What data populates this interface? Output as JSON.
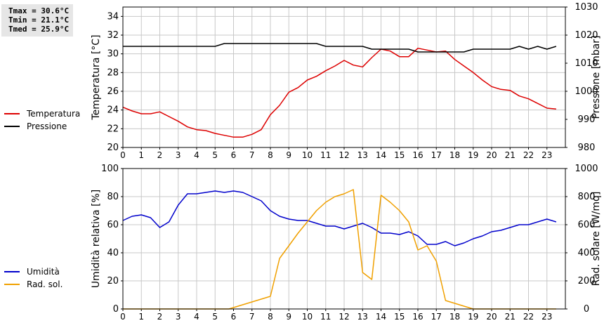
{
  "stats": {
    "tmax": "Tmax = 30.6°C",
    "tmin": "Tmin = 21.1°C",
    "tmed": "Tmed = 25.9°C"
  },
  "colors": {
    "temperature": "#dd0000",
    "pressure": "#000000",
    "humidity": "#0000cc",
    "radiation": "#f0a000",
    "grid": "#c8c8c8"
  },
  "chart_data": [
    {
      "type": "line",
      "x_ticks": [
        "0",
        "1",
        "2",
        "3",
        "4",
        "5",
        "6",
        "7",
        "8",
        "9",
        "10",
        "11",
        "12",
        "13",
        "14",
        "15",
        "16",
        "17",
        "18",
        "19",
        "20",
        "21",
        "22",
        "23"
      ],
      "xlim": [
        0,
        24
      ],
      "ylabel": "Temperatura [°C]",
      "ylim": [
        20,
        35
      ],
      "y_ticks": [
        "20",
        "22",
        "24",
        "26",
        "28",
        "30",
        "32",
        "34"
      ],
      "ylabel_right": "Pressione [mbar]",
      "ylim_right": [
        980,
        1030
      ],
      "y_ticks_right": [
        "980",
        "990",
        "1000",
        "1010",
        "1020",
        "1030"
      ],
      "grid": true,
      "legend_position": "left",
      "series": [
        {
          "name": "Temperatura",
          "axis": "left",
          "x": [
            0,
            0.5,
            1,
            1.5,
            2,
            2.5,
            3,
            3.5,
            4,
            4.5,
            5,
            5.5,
            6,
            6.25,
            6.5,
            7,
            7.5,
            8,
            8.5,
            9,
            9.5,
            10,
            10.5,
            11,
            11.5,
            12,
            12.5,
            13,
            13.5,
            14,
            14.5,
            15,
            15.5,
            16,
            16.5,
            17,
            17.5,
            18,
            18.5,
            19,
            19.5,
            20,
            20.5,
            21,
            21.5,
            22,
            22.5,
            23,
            23.5
          ],
          "values": [
            24.3,
            23.9,
            23.6,
            23.6,
            23.8,
            23.3,
            22.8,
            22.2,
            21.9,
            21.8,
            21.5,
            21.3,
            21.1,
            21.1,
            21.1,
            21.4,
            21.9,
            23.5,
            24.5,
            25.9,
            26.4,
            27.2,
            27.6,
            28.2,
            28.7,
            29.3,
            28.8,
            28.6,
            29.6,
            30.5,
            30.3,
            29.7,
            29.7,
            30.6,
            30.4,
            30.2,
            30.3,
            29.4,
            28.7,
            28.0,
            27.2,
            26.5,
            26.2,
            26.1,
            25.5,
            25.2,
            24.7,
            24.2,
            24.1
          ]
        },
        {
          "name": "Pressione",
          "axis": "right",
          "x": [
            0,
            1,
            2,
            3,
            4,
            5,
            5.5,
            6,
            7,
            8,
            9,
            10,
            10.5,
            11,
            12,
            13,
            13.5,
            14,
            15,
            15.5,
            16,
            17,
            18,
            18.5,
            19,
            20,
            21,
            21.5,
            22,
            22.5,
            23,
            23.5
          ],
          "values": [
            1016,
            1016,
            1016,
            1016,
            1016,
            1016,
            1017,
            1017,
            1017,
            1017,
            1017,
            1017,
            1017,
            1016,
            1016,
            1016,
            1015,
            1015,
            1015,
            1015,
            1014,
            1014,
            1014,
            1014,
            1015,
            1015,
            1015,
            1016,
            1015,
            1016,
            1015,
            1016
          ]
        }
      ]
    },
    {
      "type": "line",
      "x_ticks": [
        "0",
        "1",
        "2",
        "3",
        "4",
        "5",
        "6",
        "7",
        "8",
        "9",
        "10",
        "11",
        "12",
        "13",
        "14",
        "15",
        "16",
        "17",
        "18",
        "19",
        "20",
        "21",
        "22",
        "23"
      ],
      "xlim": [
        0,
        24
      ],
      "ylabel": "Umidità relativa [%]",
      "ylim": [
        0,
        100
      ],
      "y_ticks": [
        "0",
        "20",
        "40",
        "60",
        "80",
        "100"
      ],
      "ylabel_right": "Rad. solare [W/mq]",
      "ylim_right": [
        0,
        1000
      ],
      "y_ticks_right": [
        "0",
        "200",
        "400",
        "600",
        "800",
        "1000"
      ],
      "grid": true,
      "legend_position": "left",
      "series": [
        {
          "name": "Umidità",
          "axis": "left",
          "x": [
            0,
            0.5,
            1,
            1.5,
            2,
            2.5,
            3,
            3.5,
            4,
            4.5,
            5,
            5.5,
            6,
            6.5,
            7,
            7.5,
            8,
            8.5,
            9,
            9.5,
            10,
            10.5,
            11,
            11.5,
            12,
            12.5,
            13,
            13.5,
            14,
            14.5,
            15,
            15.5,
            16,
            16.5,
            17,
            17.5,
            18,
            18.5,
            19,
            19.5,
            20,
            20.5,
            21,
            21.5,
            22,
            22.5,
            23,
            23.5
          ],
          "values": [
            63,
            66,
            67,
            65,
            58,
            62,
            74,
            82,
            82,
            83,
            84,
            83,
            84,
            83,
            80,
            77,
            70,
            66,
            64,
            63,
            63,
            61,
            59,
            59,
            57,
            59,
            61,
            58,
            54,
            54,
            53,
            55,
            52,
            46,
            46,
            48,
            45,
            47,
            50,
            52,
            55,
            56,
            58,
            60,
            60,
            62,
            64,
            62
          ]
        },
        {
          "name": "Rad. sol.",
          "axis": "right",
          "x": [
            0,
            1,
            2,
            3,
            4,
            5,
            5.75,
            6,
            6.5,
            7,
            7.5,
            8,
            8.5,
            9,
            9.5,
            10,
            10.5,
            11,
            11.5,
            12,
            12.5,
            13,
            13.5,
            14,
            14.5,
            15,
            15.5,
            16,
            16.5,
            17,
            17.5,
            18,
            18.5,
            19,
            20,
            21,
            22,
            23,
            23.5
          ],
          "values": [
            0,
            0,
            0,
            0,
            0,
            0,
            0,
            10,
            30,
            50,
            70,
            90,
            360,
            450,
            540,
            620,
            700,
            760,
            800,
            820,
            850,
            260,
            210,
            810,
            760,
            700,
            620,
            420,
            450,
            340,
            60,
            40,
            20,
            0,
            0,
            0,
            0,
            0,
            0
          ]
        }
      ]
    }
  ]
}
